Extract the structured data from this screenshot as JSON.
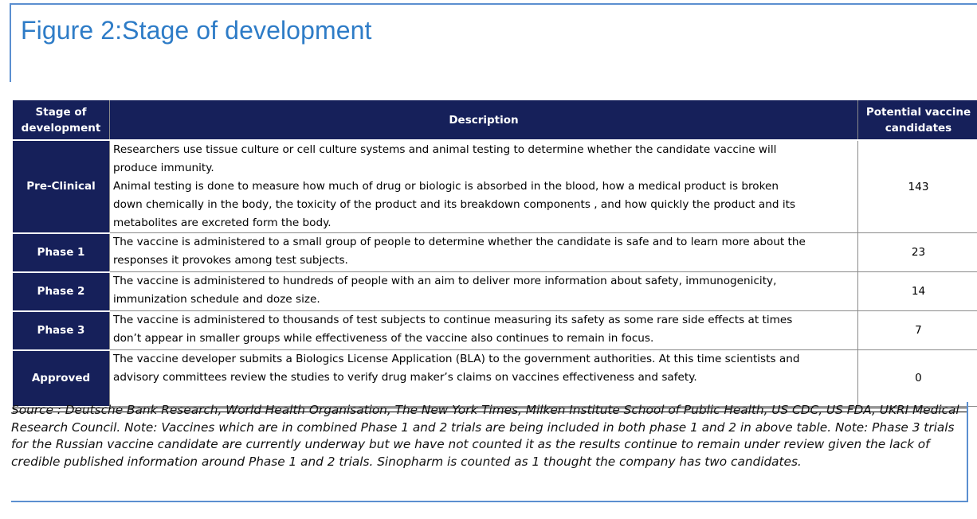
{
  "figure": {
    "title": "Figure 2:Stage of development"
  },
  "table": {
    "headers": {
      "stage": "Stage of development",
      "description": "Description",
      "count": "Potential vaccine candidates"
    },
    "rows": [
      {
        "stage": "Pre-Clinical",
        "description": [
          "Researchers use tissue culture or cell culture systems and animal testing to determine whether the candidate vaccine will",
          "produce immunity.",
          "Animal testing is done to measure how much of drug or biologic is absorbed in the blood, how a medical product is broken",
          "down chemically in the body, the toxicity of the product and its breakdown components , and how quickly the product and its",
          "metabolites are excreted form the body."
        ],
        "count": "143"
      },
      {
        "stage": "Phase 1",
        "description": [
          "The vaccine is administered to a small group of people to determine whether the candidate is safe and to learn more about the",
          "responses it provokes among test subjects."
        ],
        "count": "23"
      },
      {
        "stage": "Phase 2",
        "description": [
          "The vaccine is administered to hundreds of people with an aim to deliver more information about safety, immunogenicity,",
          "immunization schedule and doze size."
        ],
        "count": "14"
      },
      {
        "stage": "Phase 3",
        "description": [
          "The vaccine is administered to thousands of test subjects to continue measuring its safety as some rare side effects at times",
          "don’t appear in smaller groups while effectiveness of the vaccine also continues to remain in focus."
        ],
        "count": "7"
      },
      {
        "stage": "Approved",
        "description": [
          "The vaccine developer submits a Biologics License Application (BLA) to the government authorities. At this time scientists and",
          "advisory committees review the studies to verify drug maker’s claims on vaccines effectiveness and safety."
        ],
        "count": "0"
      }
    ]
  },
  "source_note": "Source : Deutsche Bank Research, World Health Organisation, The New York Times, Milken Institute School of Public Health, US CDC, US FDA, UKRI Medical Research Council. Note: Vaccines which are in combined Phase 1 and 2 trials are being included in both phase 1 and 2 in above table. Note: Phase 3 trials for the Russian vaccine candidate are currently underway but we have not counted it as the results continue to remain under review given the lack of credible published information around Phase 1 and 2 trials. Sinopharm is counted as 1 thought the company has two candidates.",
  "colors": {
    "header_bg": "#16205a",
    "title_blue": "#2e7cc7",
    "frame_blue": "#5b8fd0"
  }
}
